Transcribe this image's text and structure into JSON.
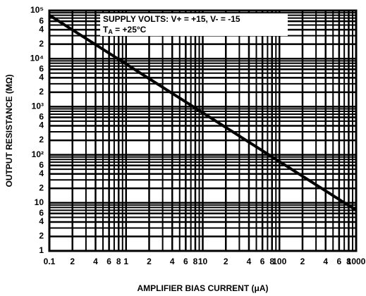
{
  "chart_data": {
    "type": "line",
    "xlabel": "AMPLIFIER BIAS CURRENT (μA)",
    "ylabel": "OUTPUT RESISTANCE (MΩ)",
    "annotation_1": "SUPPLY VOLTS: V+ = +15, V- = -15",
    "annotation_2": [
      "T",
      "A",
      " = +25°C"
    ],
    "xscale": "log",
    "yscale": "log",
    "grid": true,
    "minor_grid": true,
    "xlim": [
      0.1,
      1000
    ],
    "ylim": [
      1,
      100000
    ],
    "xticks": [
      0.1,
      {
        "value": 0.2,
        "label": "2"
      },
      {
        "value": 0.4,
        "label": "4"
      },
      {
        "value": 0.6,
        "label": "6"
      },
      {
        "value": 0.8,
        "label": "8"
      },
      1,
      2,
      4,
      6,
      8,
      10,
      {
        "value": 20,
        "label": "2"
      },
      {
        "value": 40,
        "label": "4"
      },
      {
        "value": 60,
        "label": "6"
      },
      {
        "value": 80,
        "label": "8"
      },
      100,
      {
        "value": 200,
        "label": "2"
      },
      {
        "value": 400,
        "label": "4"
      },
      {
        "value": 600,
        "label": "6"
      },
      {
        "value": 800,
        "label": "8"
      },
      1000
    ],
    "yticks": [
      1,
      2,
      4,
      6,
      10,
      {
        "value": 20,
        "label": "2"
      },
      {
        "value": 40,
        "label": "4"
      },
      {
        "value": 60,
        "label": "6"
      },
      {
        "value": 100,
        "label": "10²"
      },
      {
        "value": 200,
        "label": "2"
      },
      {
        "value": 400,
        "label": "4"
      },
      {
        "value": 600,
        "label": "6"
      },
      {
        "value": 1000,
        "label": "10³"
      },
      {
        "value": 2000,
        "label": "2"
      },
      {
        "value": 4000,
        "label": "4"
      },
      {
        "value": 6000,
        "label": "6"
      },
      {
        "value": 10000,
        "label": "10⁴"
      },
      {
        "value": 20000,
        "label": "2"
      },
      {
        "value": 40000,
        "label": "4"
      },
      {
        "value": 60000,
        "label": "6"
      },
      {
        "value": 100000,
        "label": "10⁵"
      }
    ],
    "series": [
      {
        "color": "#000000",
        "x": [
          0.1,
          1000
        ],
        "values": [
          80000,
          7
        ]
      }
    ]
  }
}
